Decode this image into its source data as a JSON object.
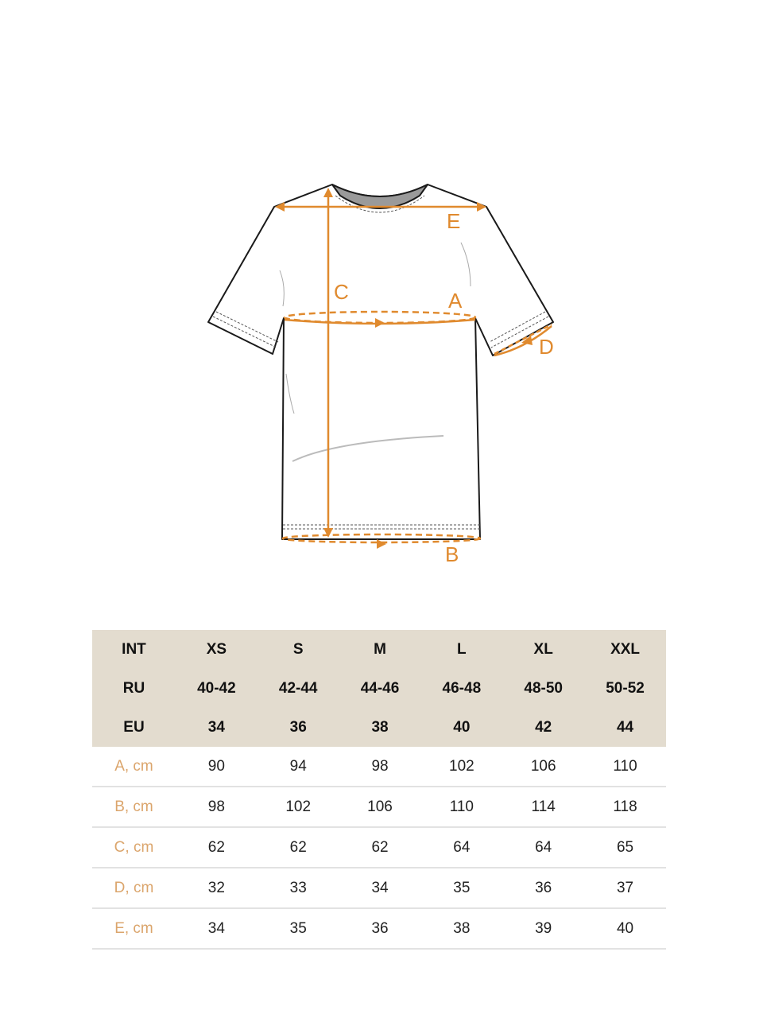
{
  "diagram": {
    "labels": {
      "a": "A",
      "b": "B",
      "c": "C",
      "d": "D",
      "e": "E"
    },
    "colors": {
      "measure": "#e08a2e",
      "outline": "#1a1a1a",
      "collar": "#9a9a9a"
    }
  },
  "table": {
    "header_rows": [
      [
        "INT",
        "XS",
        "S",
        "M",
        "L",
        "XL",
        "XXL"
      ],
      [
        "RU",
        "40-42",
        "42-44",
        "44-46",
        "46-48",
        "48-50",
        "50-52"
      ],
      [
        "EU",
        "34",
        "36",
        "38",
        "40",
        "42",
        "44"
      ]
    ],
    "rows": [
      [
        "A, cm",
        "90",
        "94",
        "98",
        "102",
        "106",
        "110"
      ],
      [
        "B, cm",
        "98",
        "102",
        "106",
        "110",
        "114",
        "118"
      ],
      [
        "C, cm",
        "62",
        "62",
        "62",
        "64",
        "64",
        "65"
      ],
      [
        "D, cm",
        "32",
        "33",
        "34",
        "35",
        "36",
        "37"
      ],
      [
        "E, cm",
        "34",
        "35",
        "36",
        "38",
        "39",
        "40"
      ]
    ],
    "colors": {
      "header_bg": "#e3dccf",
      "label": "#dba56c"
    }
  }
}
